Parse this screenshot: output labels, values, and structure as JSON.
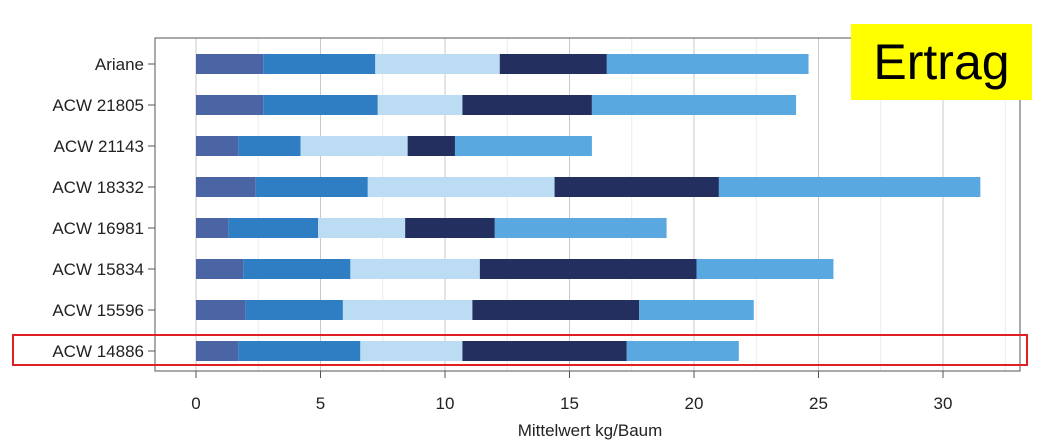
{
  "chart_data": {
    "type": "bar",
    "orientation": "horizontal",
    "stacked": true,
    "title": "",
    "xlabel": "Mittelwert kg/Baum",
    "ylabel": "",
    "xlim": [
      0,
      32
    ],
    "xticks": [
      0,
      5,
      10,
      15,
      20,
      25,
      30
    ],
    "grid": true,
    "categories": [
      "Ariane",
      "ACW 21805",
      "ACW 21143",
      "ACW 18332",
      "ACW 16981",
      "ACW 15834",
      "ACW 15596",
      "ACW 14886"
    ],
    "segment_colors": [
      "#4a64a4",
      "#2f7ec4",
      "#bcdcf4",
      "#23305f",
      "#5aa8e0"
    ],
    "series": [
      {
        "values": [
          2.7,
          2.7,
          1.7,
          2.4,
          1.3,
          1.9,
          2.0,
          1.7
        ]
      },
      {
        "values": [
          4.5,
          4.6,
          2.5,
          4.5,
          3.6,
          4.3,
          3.9,
          4.9
        ]
      },
      {
        "values": [
          5.0,
          3.4,
          4.3,
          7.5,
          3.5,
          5.2,
          5.2,
          4.1
        ]
      },
      {
        "values": [
          4.3,
          5.2,
          1.9,
          6.6,
          3.6,
          8.7,
          6.7,
          6.6
        ]
      },
      {
        "values": [
          8.1,
          8.2,
          5.5,
          10.5,
          6.9,
          5.5,
          4.6,
          4.5
        ]
      }
    ]
  },
  "badge": {
    "label": "Ertrag",
    "color": "#ffff00"
  },
  "highlight": {
    "category": "ACW 14886",
    "color": "#e02020"
  }
}
